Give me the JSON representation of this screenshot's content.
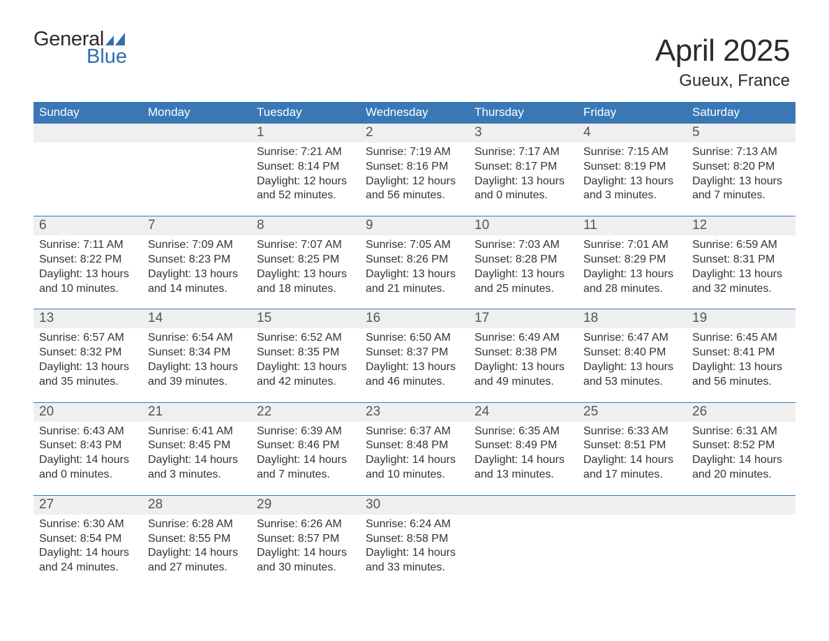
{
  "logo": {
    "word_top": "General",
    "word_bottom": "Blue",
    "color_blue": "#2f6fae",
    "color_dark": "#2b2b2b"
  },
  "header": {
    "month_title": "April 2025",
    "location": "Gueux, France"
  },
  "calendar": {
    "days_of_week": [
      "Sunday",
      "Monday",
      "Tuesday",
      "Wednesday",
      "Thursday",
      "Friday",
      "Saturday"
    ],
    "header_bg": "#3a78b5",
    "row_grey": "#efefef",
    "rule_blue": "#3a78b5",
    "weeks": [
      [
        null,
        null,
        {
          "n": "1",
          "sunrise": "Sunrise: 7:21 AM",
          "sunset": "Sunset: 8:14 PM",
          "day": "Daylight: 12 hours and 52 minutes."
        },
        {
          "n": "2",
          "sunrise": "Sunrise: 7:19 AM",
          "sunset": "Sunset: 8:16 PM",
          "day": "Daylight: 12 hours and 56 minutes."
        },
        {
          "n": "3",
          "sunrise": "Sunrise: 7:17 AM",
          "sunset": "Sunset: 8:17 PM",
          "day": "Daylight: 13 hours and 0 minutes."
        },
        {
          "n": "4",
          "sunrise": "Sunrise: 7:15 AM",
          "sunset": "Sunset: 8:19 PM",
          "day": "Daylight: 13 hours and 3 minutes."
        },
        {
          "n": "5",
          "sunrise": "Sunrise: 7:13 AM",
          "sunset": "Sunset: 8:20 PM",
          "day": "Daylight: 13 hours and 7 minutes."
        }
      ],
      [
        {
          "n": "6",
          "sunrise": "Sunrise: 7:11 AM",
          "sunset": "Sunset: 8:22 PM",
          "day": "Daylight: 13 hours and 10 minutes."
        },
        {
          "n": "7",
          "sunrise": "Sunrise: 7:09 AM",
          "sunset": "Sunset: 8:23 PM",
          "day": "Daylight: 13 hours and 14 minutes."
        },
        {
          "n": "8",
          "sunrise": "Sunrise: 7:07 AM",
          "sunset": "Sunset: 8:25 PM",
          "day": "Daylight: 13 hours and 18 minutes."
        },
        {
          "n": "9",
          "sunrise": "Sunrise: 7:05 AM",
          "sunset": "Sunset: 8:26 PM",
          "day": "Daylight: 13 hours and 21 minutes."
        },
        {
          "n": "10",
          "sunrise": "Sunrise: 7:03 AM",
          "sunset": "Sunset: 8:28 PM",
          "day": "Daylight: 13 hours and 25 minutes."
        },
        {
          "n": "11",
          "sunrise": "Sunrise: 7:01 AM",
          "sunset": "Sunset: 8:29 PM",
          "day": "Daylight: 13 hours and 28 minutes."
        },
        {
          "n": "12",
          "sunrise": "Sunrise: 6:59 AM",
          "sunset": "Sunset: 8:31 PM",
          "day": "Daylight: 13 hours and 32 minutes."
        }
      ],
      [
        {
          "n": "13",
          "sunrise": "Sunrise: 6:57 AM",
          "sunset": "Sunset: 8:32 PM",
          "day": "Daylight: 13 hours and 35 minutes."
        },
        {
          "n": "14",
          "sunrise": "Sunrise: 6:54 AM",
          "sunset": "Sunset: 8:34 PM",
          "day": "Daylight: 13 hours and 39 minutes."
        },
        {
          "n": "15",
          "sunrise": "Sunrise: 6:52 AM",
          "sunset": "Sunset: 8:35 PM",
          "day": "Daylight: 13 hours and 42 minutes."
        },
        {
          "n": "16",
          "sunrise": "Sunrise: 6:50 AM",
          "sunset": "Sunset: 8:37 PM",
          "day": "Daylight: 13 hours and 46 minutes."
        },
        {
          "n": "17",
          "sunrise": "Sunrise: 6:49 AM",
          "sunset": "Sunset: 8:38 PM",
          "day": "Daylight: 13 hours and 49 minutes."
        },
        {
          "n": "18",
          "sunrise": "Sunrise: 6:47 AM",
          "sunset": "Sunset: 8:40 PM",
          "day": "Daylight: 13 hours and 53 minutes."
        },
        {
          "n": "19",
          "sunrise": "Sunrise: 6:45 AM",
          "sunset": "Sunset: 8:41 PM",
          "day": "Daylight: 13 hours and 56 minutes."
        }
      ],
      [
        {
          "n": "20",
          "sunrise": "Sunrise: 6:43 AM",
          "sunset": "Sunset: 8:43 PM",
          "day": "Daylight: 14 hours and 0 minutes."
        },
        {
          "n": "21",
          "sunrise": "Sunrise: 6:41 AM",
          "sunset": "Sunset: 8:45 PM",
          "day": "Daylight: 14 hours and 3 minutes."
        },
        {
          "n": "22",
          "sunrise": "Sunrise: 6:39 AM",
          "sunset": "Sunset: 8:46 PM",
          "day": "Daylight: 14 hours and 7 minutes."
        },
        {
          "n": "23",
          "sunrise": "Sunrise: 6:37 AM",
          "sunset": "Sunset: 8:48 PM",
          "day": "Daylight: 14 hours and 10 minutes."
        },
        {
          "n": "24",
          "sunrise": "Sunrise: 6:35 AM",
          "sunset": "Sunset: 8:49 PM",
          "day": "Daylight: 14 hours and 13 minutes."
        },
        {
          "n": "25",
          "sunrise": "Sunrise: 6:33 AM",
          "sunset": "Sunset: 8:51 PM",
          "day": "Daylight: 14 hours and 17 minutes."
        },
        {
          "n": "26",
          "sunrise": "Sunrise: 6:31 AM",
          "sunset": "Sunset: 8:52 PM",
          "day": "Daylight: 14 hours and 20 minutes."
        }
      ],
      [
        {
          "n": "27",
          "sunrise": "Sunrise: 6:30 AM",
          "sunset": "Sunset: 8:54 PM",
          "day": "Daylight: 14 hours and 24 minutes."
        },
        {
          "n": "28",
          "sunrise": "Sunrise: 6:28 AM",
          "sunset": "Sunset: 8:55 PM",
          "day": "Daylight: 14 hours and 27 minutes."
        },
        {
          "n": "29",
          "sunrise": "Sunrise: 6:26 AM",
          "sunset": "Sunset: 8:57 PM",
          "day": "Daylight: 14 hours and 30 minutes."
        },
        {
          "n": "30",
          "sunrise": "Sunrise: 6:24 AM",
          "sunset": "Sunset: 8:58 PM",
          "day": "Daylight: 14 hours and 33 minutes."
        },
        null,
        null,
        null
      ]
    ]
  }
}
